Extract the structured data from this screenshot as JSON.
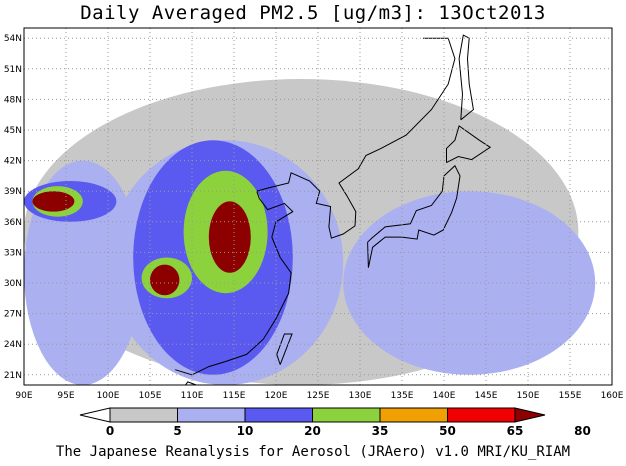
{
  "title": "Daily Averaged PM2.5 [ug/m3]: 13Oct2013",
  "credit": "The Japanese Reanalysis for Aerosol (JRAero) v1.0 MRI/KU_RIAM",
  "map": {
    "lon_range": [
      90,
      160
    ],
    "lat_range": [
      20,
      55
    ],
    "lon_ticks": [
      "90E",
      "95E",
      "100E",
      "105E",
      "110E",
      "115E",
      "120E",
      "125E",
      "130E",
      "135E",
      "140E",
      "145E",
      "150E",
      "155E",
      "160E"
    ],
    "lat_ticks": [
      "21N",
      "24N",
      "27N",
      "30N",
      "33N",
      "36N",
      "39N",
      "42N",
      "45N",
      "48N",
      "51N",
      "54N"
    ],
    "grid": true,
    "colorbar": {
      "levels": [
        "0",
        "5",
        "10",
        "20",
        "35",
        "50",
        "65",
        "80"
      ],
      "colors": [
        "#ffffff",
        "#c8c8c8",
        "#aab0f0",
        "#5a5af0",
        "#8cd23c",
        "#f0a000",
        "#f00000",
        "#8c0000"
      ]
    },
    "field": [
      {
        "lon": [
          90.0,
          156.0
        ],
        "lat": [
          20.0,
          50.0
        ],
        "level": 1
      },
      {
        "lon": [
          90.0,
          104.0
        ],
        "lat": [
          20.0,
          42.0
        ],
        "level": 2
      },
      {
        "lon": [
          100.0,
          128.0
        ],
        "lat": [
          20.0,
          44.0
        ],
        "level": 2
      },
      {
        "lon": [
          128.0,
          158.0
        ],
        "lat": [
          21.0,
          39.0
        ],
        "level": 2
      },
      {
        "lon": [
          90.0,
          101.0
        ],
        "lat": [
          36.0,
          40.0
        ],
        "level": 3
      },
      {
        "lon": [
          103.0,
          122.0
        ],
        "lat": [
          21.0,
          44.0
        ],
        "level": 3
      },
      {
        "lon": [
          91.0,
          97.0
        ],
        "lat": [
          36.5,
          39.5
        ],
        "level": 4
      },
      {
        "lon": [
          104.0,
          110.0
        ],
        "lat": [
          28.5,
          32.5
        ],
        "level": 4
      },
      {
        "lon": [
          109.0,
          119.0
        ],
        "lat": [
          29.0,
          41.0
        ],
        "level": 4
      },
      {
        "lon": [
          91.0,
          96.0
        ],
        "lat": [
          37.0,
          39.0
        ],
        "level": 7
      },
      {
        "lon": [
          105.0,
          108.5
        ],
        "lat": [
          28.8,
          31.8
        ],
        "level": 7
      },
      {
        "lon": [
          112.0,
          117.0
        ],
        "lat": [
          31.0,
          38.0
        ],
        "level": 7
      }
    ]
  }
}
